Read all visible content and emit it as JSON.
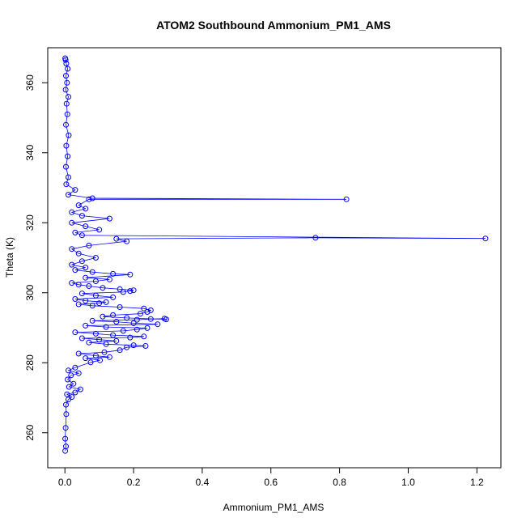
{
  "chart_data": {
    "type": "scatter",
    "title": "ATOM2 Southbound Ammonium_PM1_AMS",
    "xlabel": "Ammonium_PM1_AMS",
    "ylabel": "Theta (K)",
    "xlim": [
      -0.05,
      1.27
    ],
    "ylim": [
      250,
      370
    ],
    "x_ticks": [
      "0.0",
      "0.2",
      "0.4",
      "0.6",
      "0.8",
      "1.0",
      "1.2"
    ],
    "y_ticks": [
      "260",
      "280",
      "300",
      "320",
      "340",
      "360"
    ],
    "grid": false,
    "legend": "none",
    "series_color": "#0000ff",
    "marker": "open-circle",
    "connected": true,
    "series": [
      {
        "values": [
          [
            0.001,
            254.8
          ],
          [
            0.003,
            256.1
          ],
          [
            0.001,
            258.3
          ],
          [
            0.002,
            261.4
          ],
          [
            0.004,
            265.3
          ],
          [
            0.003,
            268.0
          ],
          [
            0.01,
            269.5
          ],
          [
            0.02,
            270.2
          ],
          [
            0.006,
            271.0
          ],
          [
            0.03,
            271.5
          ],
          [
            0.045,
            272.4
          ],
          [
            0.012,
            273.1
          ],
          [
            0.025,
            274.0
          ],
          [
            0.008,
            275.2
          ],
          [
            0.018,
            276.4
          ],
          [
            0.04,
            277.0
          ],
          [
            0.01,
            277.8
          ],
          [
            0.03,
            278.6
          ],
          [
            0.075,
            280.1
          ],
          [
            0.102,
            280.7
          ],
          [
            0.06,
            281.3
          ],
          [
            0.13,
            281.6
          ],
          [
            0.09,
            282.0
          ],
          [
            0.04,
            282.6
          ],
          [
            0.115,
            283.0
          ],
          [
            0.16,
            283.6
          ],
          [
            0.18,
            284.4
          ],
          [
            0.235,
            284.8
          ],
          [
            0.2,
            285.0
          ],
          [
            0.12,
            285.3
          ],
          [
            0.07,
            285.8
          ],
          [
            0.15,
            286.2
          ],
          [
            0.1,
            286.6
          ],
          [
            0.05,
            287.0
          ],
          [
            0.19,
            287.2
          ],
          [
            0.23,
            287.5
          ],
          [
            0.14,
            287.9
          ],
          [
            0.09,
            288.3
          ],
          [
            0.03,
            288.7
          ],
          [
            0.17,
            289.1
          ],
          [
            0.21,
            289.5
          ],
          [
            0.24,
            289.9
          ],
          [
            0.12,
            290.2
          ],
          [
            0.06,
            290.6
          ],
          [
            0.27,
            291.0
          ],
          [
            0.2,
            291.3
          ],
          [
            0.15,
            291.7
          ],
          [
            0.08,
            292.0
          ],
          [
            0.21,
            292.3
          ],
          [
            0.25,
            292.5
          ],
          [
            0.29,
            292.6
          ],
          [
            0.295,
            292.4
          ],
          [
            0.18,
            292.8
          ],
          [
            0.11,
            293.2
          ],
          [
            0.14,
            293.6
          ],
          [
            0.22,
            294.0
          ],
          [
            0.24,
            294.5
          ],
          [
            0.25,
            295.0
          ],
          [
            0.23,
            295.5
          ],
          [
            0.16,
            295.9
          ],
          [
            0.08,
            296.3
          ],
          [
            0.04,
            296.7
          ],
          [
            0.1,
            297.0
          ],
          [
            0.12,
            297.3
          ],
          [
            0.06,
            297.7
          ],
          [
            0.03,
            298.2
          ],
          [
            0.14,
            298.7
          ],
          [
            0.09,
            299.2
          ],
          [
            0.05,
            299.8
          ],
          [
            0.17,
            300.2
          ],
          [
            0.19,
            300.5
          ],
          [
            0.2,
            300.7
          ],
          [
            0.16,
            301.0
          ],
          [
            0.11,
            301.4
          ],
          [
            0.07,
            301.9
          ],
          [
            0.04,
            302.3
          ],
          [
            0.02,
            302.8
          ],
          [
            0.09,
            303.3
          ],
          [
            0.13,
            303.8
          ],
          [
            0.06,
            304.3
          ],
          [
            0.19,
            305.2
          ],
          [
            0.14,
            305.4
          ],
          [
            0.08,
            305.9
          ],
          [
            0.03,
            306.5
          ],
          [
            0.06,
            307.2
          ],
          [
            0.02,
            308.0
          ],
          [
            0.05,
            309.0
          ],
          [
            0.09,
            310.0
          ],
          [
            0.04,
            311.2
          ],
          [
            0.02,
            312.5
          ],
          [
            0.07,
            313.5
          ],
          [
            0.18,
            314.7
          ],
          [
            0.15,
            315.4
          ],
          [
            0.73,
            315.7
          ],
          [
            1.225,
            315.5
          ],
          [
            0.05,
            316.4
          ],
          [
            0.03,
            317.2
          ],
          [
            0.1,
            318.0
          ],
          [
            0.06,
            319.0
          ],
          [
            0.02,
            320.0
          ],
          [
            0.13,
            321.2
          ],
          [
            0.05,
            322.0
          ],
          [
            0.02,
            323.0
          ],
          [
            0.06,
            324.0
          ],
          [
            0.04,
            325.0
          ],
          [
            0.07,
            326.7
          ],
          [
            0.82,
            326.7
          ],
          [
            0.08,
            327.0
          ],
          [
            0.01,
            328.0
          ],
          [
            0.03,
            329.4
          ],
          [
            0.004,
            331.0
          ],
          [
            0.01,
            333.0
          ],
          [
            0.003,
            336.0
          ],
          [
            0.008,
            339.0
          ],
          [
            0.004,
            342.0
          ],
          [
            0.011,
            345.0
          ],
          [
            0.003,
            348.0
          ],
          [
            0.007,
            351.0
          ],
          [
            0.005,
            354.0
          ],
          [
            0.01,
            356.0
          ],
          [
            0.002,
            358.0
          ],
          [
            0.006,
            360.0
          ],
          [
            0.003,
            362.0
          ],
          [
            0.008,
            364.0
          ],
          [
            0.004,
            365.5
          ],
          [
            0.002,
            366.5
          ],
          [
            0.001,
            367.0
          ]
        ]
      }
    ]
  }
}
